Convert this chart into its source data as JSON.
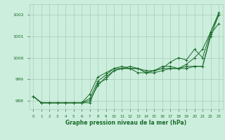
{
  "background_color": "#cceedd",
  "grid_color": "#aaccbb",
  "line_color": "#1a6b2a",
  "title": "Graphe pression niveau de la mer (hPa)",
  "ylabel_values": [
    998,
    999,
    1000,
    1001,
    1002
  ],
  "xlim": [
    -0.5,
    23.5
  ],
  "ylim": [
    997.6,
    1002.5
  ],
  "series": [
    [
      998.2,
      997.9,
      997.9,
      997.9,
      997.9,
      997.9,
      997.9,
      997.9,
      998.8,
      999.0,
      999.4,
      999.5,
      999.5,
      999.3,
      999.3,
      999.4,
      999.5,
      999.5,
      999.5,
      999.5,
      999.6,
      999.6,
      1001.1,
      1001.6
    ],
    [
      998.2,
      997.9,
      997.9,
      997.9,
      997.9,
      997.9,
      997.9,
      998.3,
      999.1,
      999.3,
      999.5,
      999.6,
      999.5,
      999.5,
      999.4,
      999.4,
      999.6,
      999.6,
      999.5,
      999.6,
      999.6,
      999.6,
      1001.0,
      1002.0
    ],
    [
      998.2,
      997.9,
      997.9,
      997.9,
      997.9,
      997.9,
      997.9,
      998.1,
      998.9,
      999.2,
      999.5,
      999.5,
      999.6,
      999.5,
      999.3,
      999.4,
      999.5,
      999.8,
      1000.0,
      999.9,
      1000.4,
      1000.0,
      1001.2,
      1002.0
    ],
    [
      998.2,
      997.9,
      997.9,
      997.9,
      997.9,
      997.9,
      997.9,
      998.0,
      998.7,
      999.1,
      999.4,
      999.5,
      999.5,
      999.5,
      999.3,
      999.3,
      999.4,
      999.5,
      999.5,
      999.7,
      1000.0,
      1000.4,
      1001.2,
      1002.1
    ]
  ],
  "xticks": [
    0,
    1,
    2,
    3,
    4,
    5,
    6,
    7,
    8,
    9,
    10,
    11,
    12,
    13,
    14,
    15,
    16,
    17,
    18,
    19,
    20,
    21,
    22,
    23
  ],
  "figsize": [
    3.2,
    2.0
  ],
  "dpi": 100
}
